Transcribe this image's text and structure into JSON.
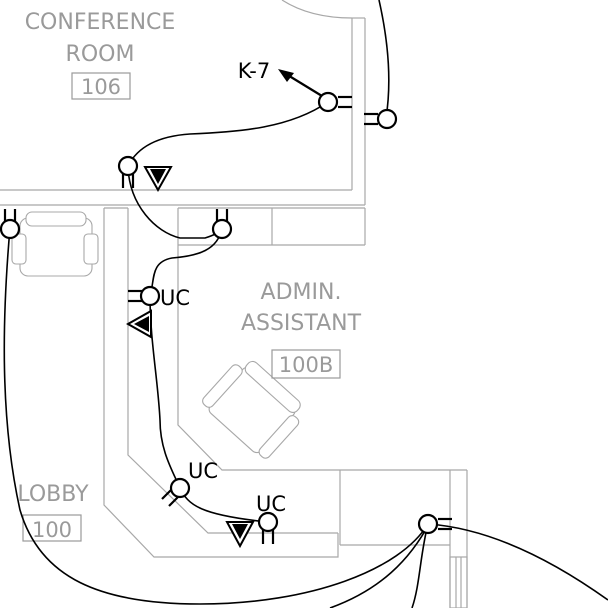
{
  "rooms": {
    "conference": {
      "line1": "CONFERENCE",
      "line2": "ROOM",
      "number": "106"
    },
    "admin": {
      "line1": "ADMIN.",
      "line2": "ASSISTANT",
      "number": "100B"
    },
    "lobby": {
      "line1": "LOBBY",
      "number": "100"
    }
  },
  "tags": {
    "circuit": "K-7",
    "uc1": "UC",
    "uc2": "UC",
    "uc3": "UC"
  }
}
